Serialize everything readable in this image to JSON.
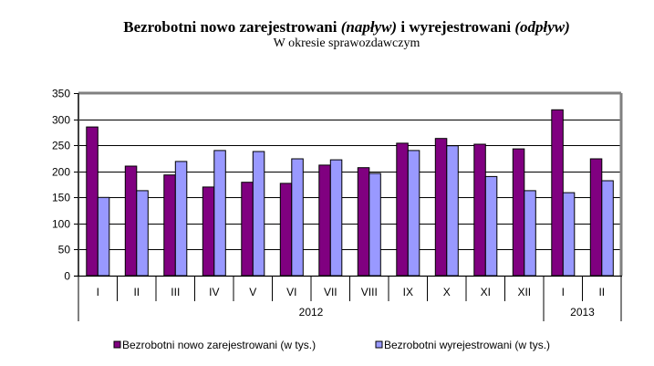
{
  "title": {
    "part1": "Bezrobotni nowo zarejestrowani ",
    "part2_italic": "(napływ)",
    "part3": " i wyrejestrowani ",
    "part4_italic": "(odpływ)"
  },
  "subtitle": "W okresie sprawozdawczym",
  "colors": {
    "series1": "#800080",
    "series2": "#9999ff",
    "frame": "#808080",
    "grid": "#000000"
  },
  "chart_data": {
    "type": "bar",
    "title": "Bezrobotni nowo zarejestrowani (napływ) i wyrejestrowani (odpływ)",
    "subtitle": "W okresie sprawozdawczym",
    "xlabel": "",
    "ylabel": "",
    "ylim": [
      0,
      350
    ],
    "yticks": [
      0,
      50,
      100,
      150,
      200,
      250,
      300,
      350
    ],
    "grid": true,
    "legend_position": "bottom",
    "categories": [
      "I",
      "II",
      "III",
      "IV",
      "V",
      "VI",
      "VII",
      "VIII",
      "IX",
      "X",
      "XI",
      "XII",
      "I",
      "II"
    ],
    "groups": [
      {
        "label": "2012",
        "span": 12
      },
      {
        "label": "2013",
        "span": 2
      }
    ],
    "series": [
      {
        "name": "Bezrobotni nowo zarejestrowani (w tys.)",
        "color": "#800080",
        "values": [
          285,
          210,
          193,
          170,
          179,
          177,
          212,
          207,
          254,
          263,
          252,
          243,
          318,
          224
        ]
      },
      {
        "name": "Bezrobotni wyrejestrowani (w tys.)",
        "color": "#9999ff",
        "values": [
          150,
          163,
          219,
          240,
          238,
          224,
          222,
          196,
          240,
          249,
          190,
          163,
          159,
          182
        ]
      }
    ]
  }
}
